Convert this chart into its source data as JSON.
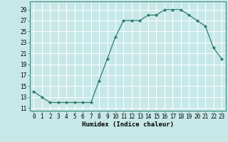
{
  "x": [
    0,
    1,
    2,
    3,
    4,
    5,
    6,
    7,
    8,
    9,
    10,
    11,
    12,
    13,
    14,
    15,
    16,
    17,
    18,
    19,
    20,
    21,
    22,
    23
  ],
  "y": [
    14,
    13,
    12,
    12,
    12,
    12,
    12,
    12,
    16,
    20,
    24,
    27,
    27,
    27,
    28,
    28,
    29,
    29,
    29,
    28,
    27,
    26,
    22,
    20
  ],
  "line_color": "#2e7d6e",
  "marker_color": "#2e7d6e",
  "bg_color": "#c8e8e8",
  "grid_color": "#ffffff",
  "xlabel": "Humidex (Indice chaleur)",
  "xlim": [
    -0.5,
    23.5
  ],
  "ylim": [
    10.5,
    30.5
  ],
  "yticks": [
    11,
    13,
    15,
    17,
    19,
    21,
    23,
    25,
    27,
    29
  ],
  "xtick_labels": [
    "0",
    "1",
    "2",
    "3",
    "4",
    "5",
    "6",
    "7",
    "8",
    "9",
    "10",
    "11",
    "12",
    "13",
    "14",
    "15",
    "16",
    "17",
    "18",
    "19",
    "20",
    "21",
    "22",
    "23"
  ],
  "xlabel_fontsize": 6.5,
  "tick_fontsize": 5.5,
  "line_width": 0.9,
  "marker_size": 2.0
}
